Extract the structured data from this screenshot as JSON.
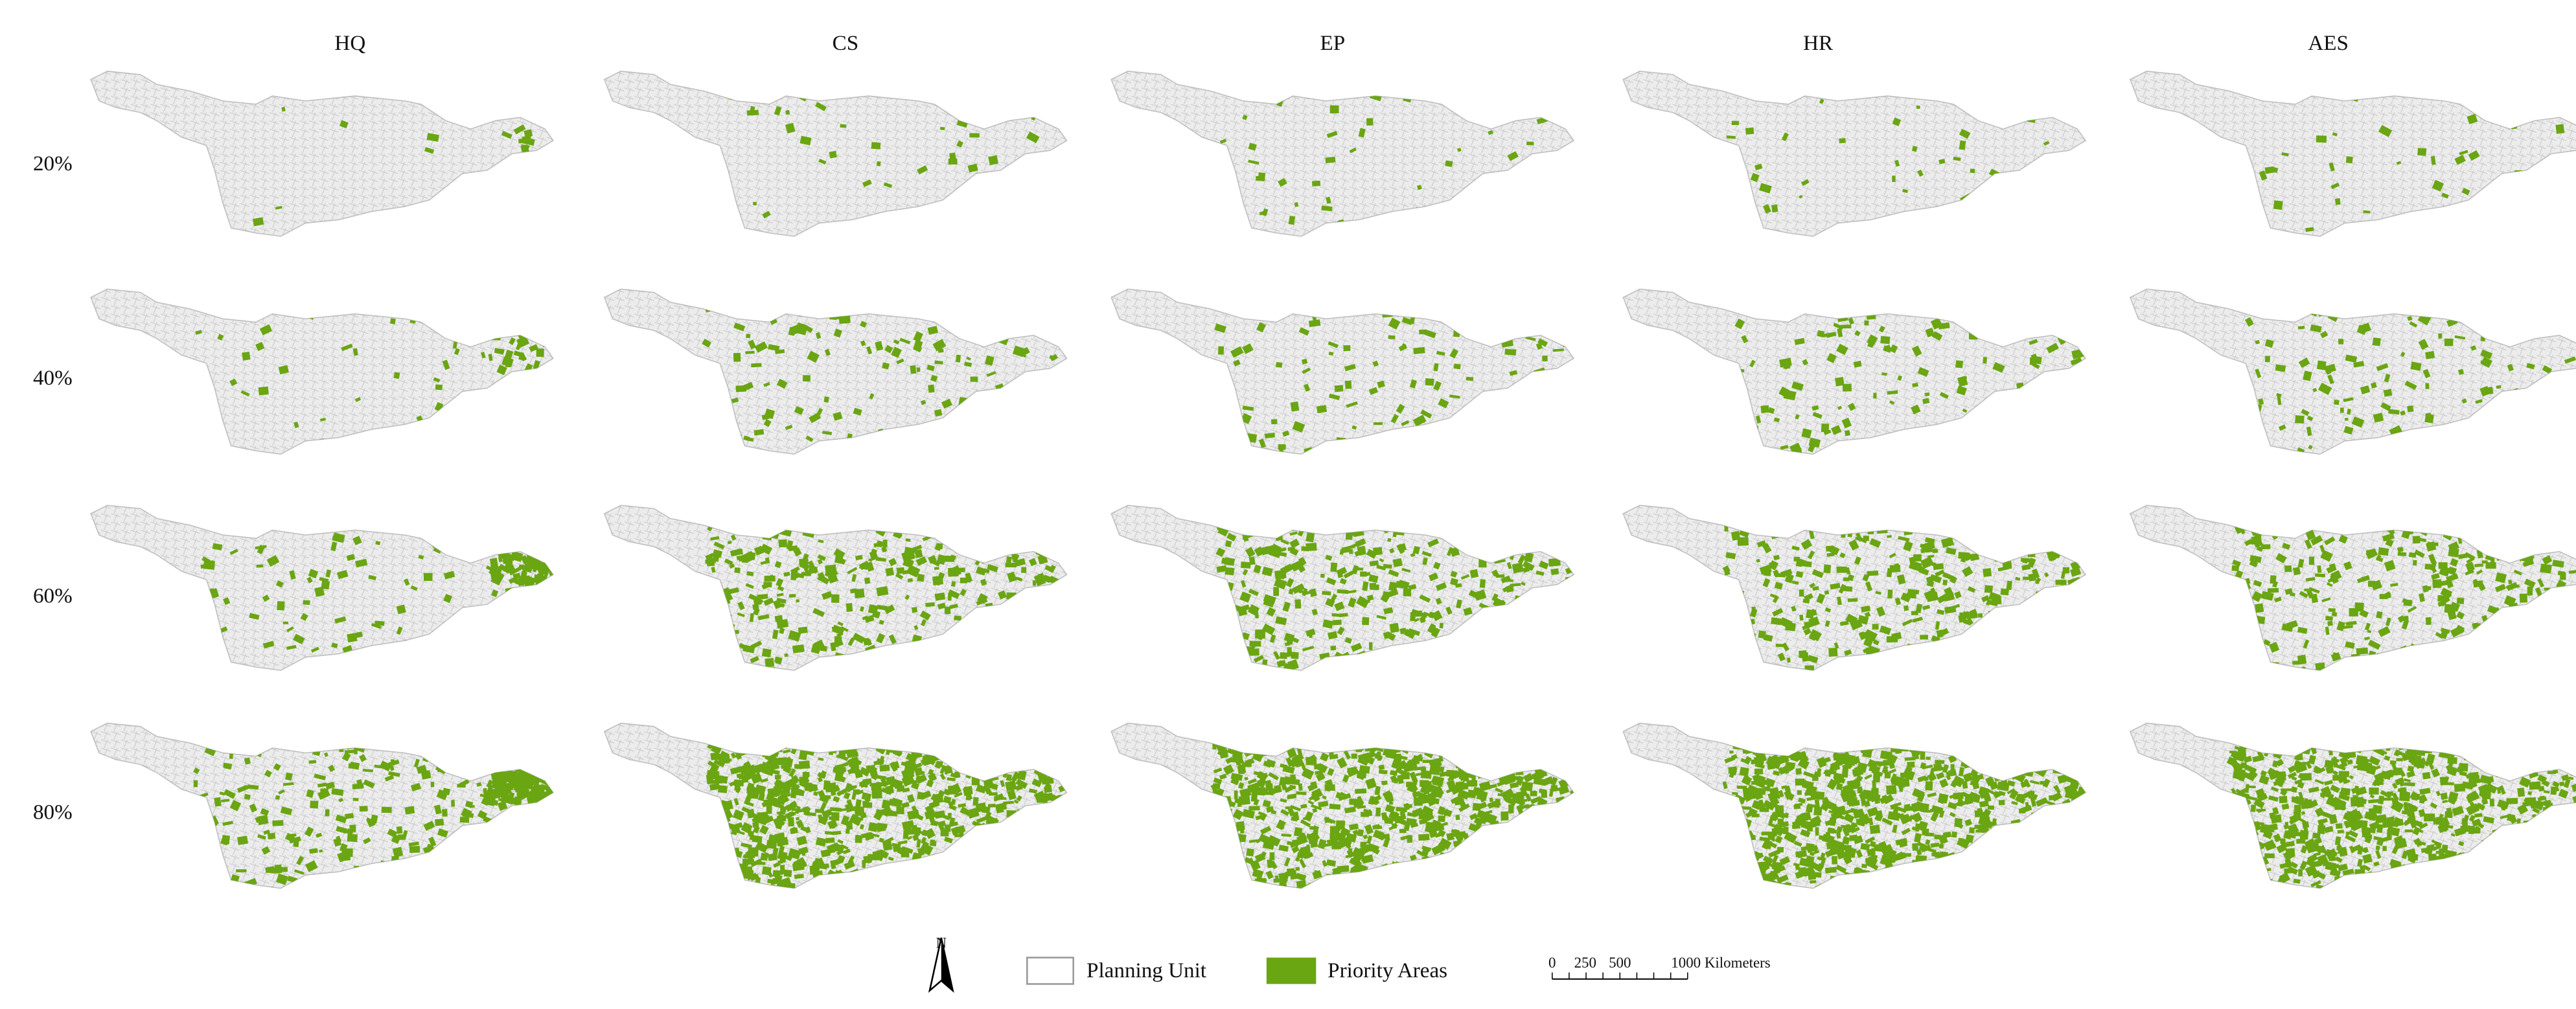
{
  "headers": [
    "HQ",
    "CS",
    "EP",
    "HR",
    "AES"
  ],
  "rows": [
    "20%",
    "40%",
    "60%",
    "80%"
  ],
  "legend": {
    "north": "N",
    "items": [
      "Planning Unit",
      "Priority Areas"
    ]
  },
  "scale_bar": {
    "labels": [
      "0",
      "250",
      "500",
      "1000 Kilometers"
    ]
  }
}
